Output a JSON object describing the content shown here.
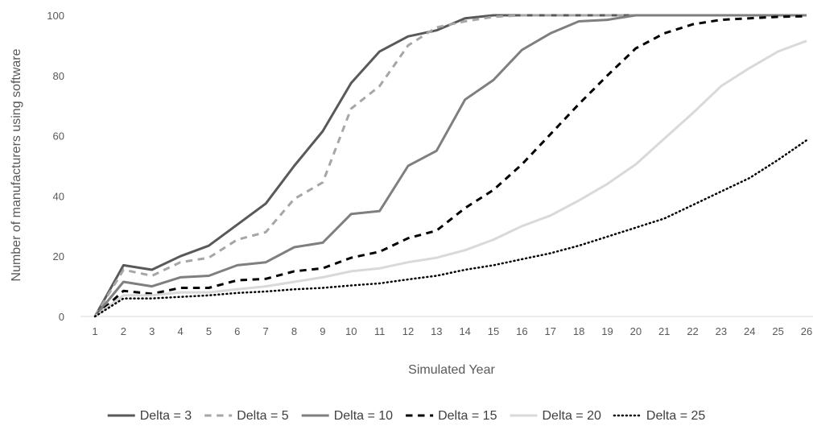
{
  "chart_data": {
    "type": "line",
    "xlabel": "Simulated Year",
    "ylabel": "Number of manufacturers using software",
    "ylim": [
      0,
      100
    ],
    "yticks": [
      0,
      20,
      40,
      60,
      80,
      100
    ],
    "x": [
      1,
      2,
      3,
      4,
      5,
      6,
      7,
      8,
      9,
      10,
      11,
      12,
      13,
      14,
      15,
      16,
      17,
      18,
      19,
      20,
      21,
      22,
      23,
      24,
      25,
      26
    ],
    "grid": false,
    "legend_position": "bottom",
    "series": [
      {
        "name": "Delta = 3",
        "color": "#595959",
        "dash": "solid",
        "width": 3,
        "values": [
          0,
          17,
          15.5,
          20,
          23.5,
          30.5,
          37.5,
          50,
          61.5,
          77.5,
          88,
          93,
          95,
          99,
          100,
          100,
          100,
          100,
          100,
          100,
          100,
          100,
          100,
          100,
          100,
          100
        ]
      },
      {
        "name": "Delta = 5",
        "color": "#a6a6a6",
        "dash": "dashed",
        "width": 3,
        "values": [
          0,
          15.5,
          13.5,
          18,
          19.5,
          25.5,
          28,
          39,
          44.5,
          69,
          76.5,
          90,
          96,
          98,
          99.5,
          100,
          100,
          100,
          100,
          100,
          100,
          100,
          100,
          100,
          100,
          100
        ]
      },
      {
        "name": "Delta = 10",
        "color": "#7f7f7f",
        "dash": "solid",
        "width": 3,
        "values": [
          0,
          11.5,
          10,
          13,
          13.5,
          17,
          18,
          23,
          24.5,
          34,
          35,
          50,
          55,
          72,
          78.5,
          88.5,
          94,
          98,
          98.5,
          100,
          100,
          100,
          100,
          100,
          100,
          100
        ]
      },
      {
        "name": "Delta = 15",
        "color": "#000000",
        "dash": "dashed",
        "width": 3,
        "values": [
          0,
          8.5,
          7.5,
          9.5,
          9.5,
          12,
          12.5,
          15,
          16,
          19.5,
          21.5,
          26,
          28.5,
          36,
          42,
          50.5,
          60.5,
          70.5,
          80,
          89,
          94,
          97,
          98.5,
          99,
          99.5,
          99.7
        ]
      },
      {
        "name": "Delta = 20",
        "color": "#d9d9d9",
        "dash": "solid",
        "width": 3,
        "values": [
          0,
          7,
          7,
          8,
          8,
          9,
          10,
          11.5,
          13,
          15,
          16,
          18,
          19.5,
          22,
          25.5,
          30,
          33.5,
          38.5,
          44,
          50.5,
          59,
          67.5,
          76.5,
          82.5,
          88,
          91.5
        ]
      },
      {
        "name": "Delta = 25",
        "color": "#000000",
        "dash": "dotted",
        "width": 2.5,
        "values": [
          0,
          6,
          6,
          6.5,
          7,
          7.8,
          8.3,
          9,
          9.5,
          10.3,
          11,
          12.3,
          13.5,
          15.5,
          17,
          19,
          21,
          23.5,
          26.5,
          29.5,
          32.5,
          37,
          41.5,
          46,
          52,
          58.5
        ]
      }
    ]
  }
}
